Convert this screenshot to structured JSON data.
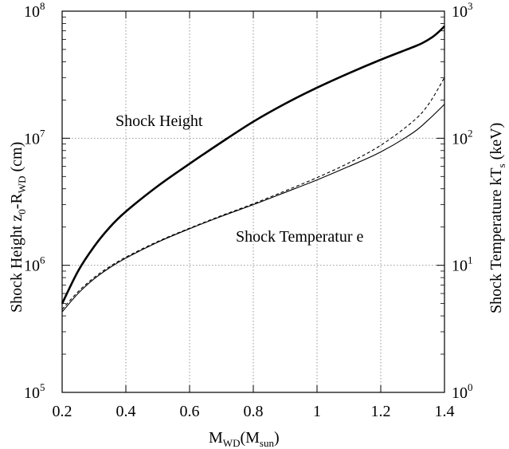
{
  "chart_data": {
    "type": "line",
    "x_axis": {
      "label_main": "M",
      "label_sub": "WD",
      "label_unit_open": "(M",
      "label_unit_sub": "sun",
      "label_unit_close": ")",
      "range": [
        0.2,
        1.4
      ],
      "ticks": [
        "0.2",
        "0.4",
        "0.6",
        "0.8",
        "1",
        "1.2",
        "1.4"
      ],
      "tick_values": [
        0.2,
        0.4,
        0.6,
        0.8,
        1.0,
        1.2,
        1.4
      ]
    },
    "y_left": {
      "label_prefix": "Shock Height  z",
      "label_sub1": "0",
      "label_mid": "-R",
      "label_sub2": "WD",
      "label_suffix": " (cm)",
      "scale": "log",
      "range": [
        100000,
        100000000
      ],
      "tick_base": "10",
      "tick_exponents": [
        "5",
        "6",
        "7",
        "8"
      ]
    },
    "y_right": {
      "label_prefix": "Shock Temperature kT",
      "label_sub": "s",
      "label_suffix": " (keV)",
      "scale": "log",
      "range": [
        1,
        1000
      ],
      "tick_base": "10",
      "tick_exponents": [
        "0",
        "1",
        "2",
        "3"
      ]
    },
    "grid": true,
    "annotations": [
      {
        "text": "Shock Height"
      },
      {
        "text": "Shock Temperatur e"
      }
    ],
    "series": [
      {
        "style": "thick-solid",
        "axis": "left",
        "x": [
          0.2,
          0.25,
          0.3,
          0.35,
          0.4,
          0.5,
          0.6,
          0.7,
          0.8,
          0.9,
          1.0,
          1.1,
          1.2,
          1.3,
          1.33,
          1.36,
          1.38,
          1.4
        ],
        "y": [
          500000,
          900000,
          1400000,
          2000000,
          2650000,
          4200000,
          6300000,
          9300000,
          13500000,
          18700000,
          25000000,
          32500000,
          41500000,
          52000000,
          56000000,
          62000000,
          68000000,
          76000000
        ]
      },
      {
        "style": "thin-dashed",
        "axis": "right",
        "x": [
          0.2,
          0.25,
          0.3,
          0.35,
          0.4,
          0.5,
          0.6,
          0.7,
          0.8,
          0.9,
          1.0,
          1.1,
          1.2,
          1.3,
          1.35,
          1.4
        ],
        "y": [
          4.5,
          6.2,
          8.0,
          9.8,
          11.6,
          15.4,
          19.6,
          24.6,
          30.5,
          38.5,
          49.0,
          64.0,
          88.0,
          135.0,
          185.0,
          300.0
        ]
      },
      {
        "style": "thin-solid",
        "axis": "right",
        "x": [
          0.2,
          0.25,
          0.3,
          0.35,
          0.4,
          0.5,
          0.6,
          0.7,
          0.8,
          0.9,
          1.0,
          1.1,
          1.2,
          1.3,
          1.35,
          1.4
        ],
        "y": [
          4.3,
          6.0,
          7.8,
          9.6,
          11.4,
          15.2,
          19.4,
          24.3,
          30.0,
          37.5,
          47.0,
          60.0,
          78.0,
          110.0,
          140.0,
          185.0
        ]
      }
    ]
  }
}
